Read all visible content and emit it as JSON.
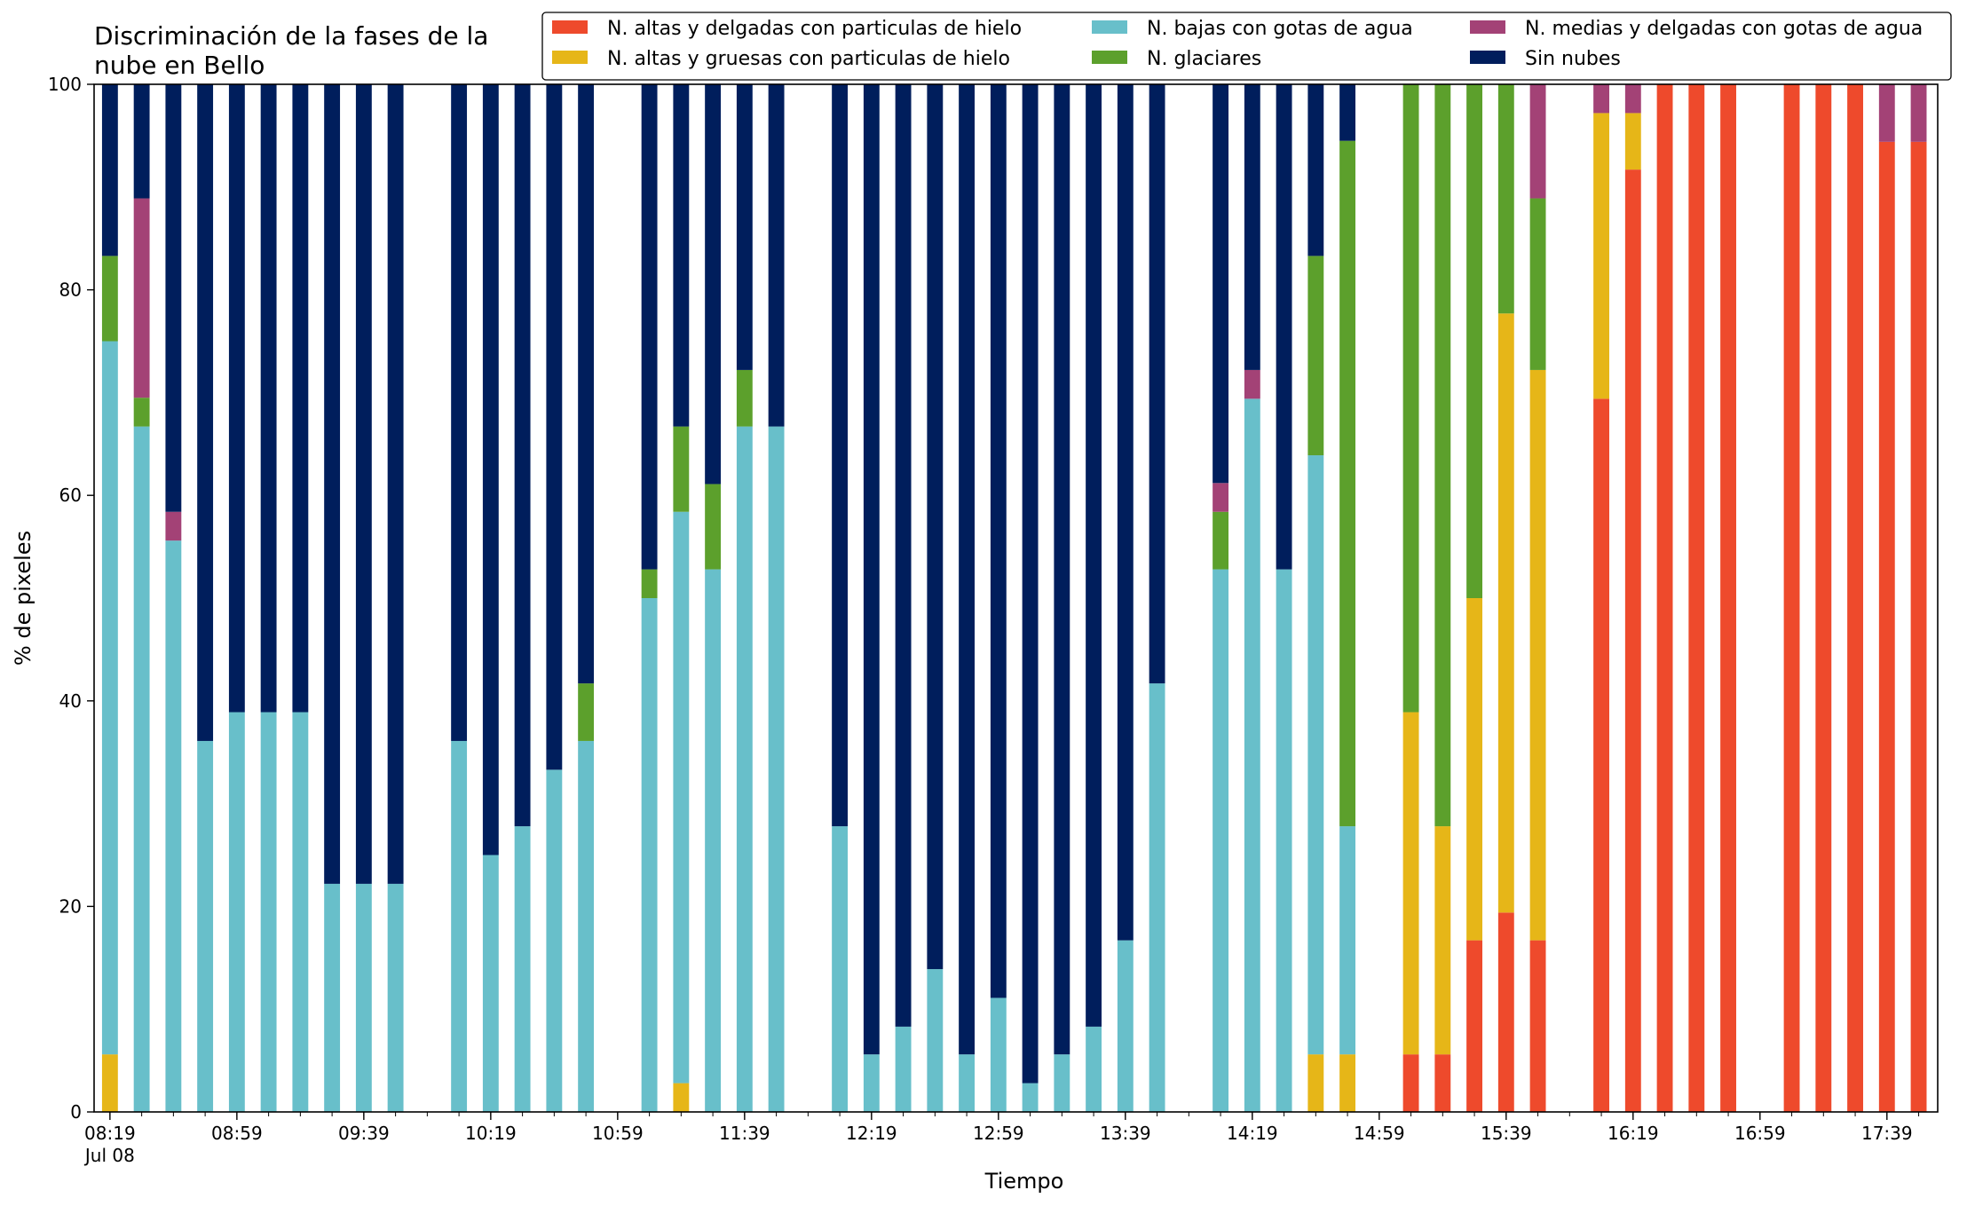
{
  "chart_data": {
    "type": "bar",
    "stacked": true,
    "title_lines": [
      "Discriminación de la fases de la",
      "nube en Bello"
    ],
    "xlabel": "Tiempo",
    "ylabel": "% de pixeles",
    "ylim": [
      0,
      100
    ],
    "yticks": [
      0,
      20,
      40,
      60,
      80,
      100
    ],
    "xlim_minutes": [
      494,
      1075
    ],
    "x_tick_labels": [
      {
        "t": 499,
        "label": "08:19",
        "sublabel": "Jul 08"
      },
      {
        "t": 539,
        "label": "08:59"
      },
      {
        "t": 579,
        "label": "09:39"
      },
      {
        "t": 619,
        "label": "10:19"
      },
      {
        "t": 659,
        "label": "10:59"
      },
      {
        "t": 699,
        "label": "11:39"
      },
      {
        "t": 739,
        "label": "12:19"
      },
      {
        "t": 779,
        "label": "12:59"
      },
      {
        "t": 819,
        "label": "13:39"
      },
      {
        "t": 859,
        "label": "14:19"
      },
      {
        "t": 899,
        "label": "14:59"
      },
      {
        "t": 939,
        "label": "15:39"
      },
      {
        "t": 979,
        "label": "16:19"
      },
      {
        "t": 1019,
        "label": "16:59"
      },
      {
        "t": 1059,
        "label": "17:39"
      }
    ],
    "x_minor_step_minutes": 10,
    "legend_position": "top-right",
    "series": [
      {
        "name": "N. altas y delgadas con particulas de hielo",
        "color": "#ee4a2c"
      },
      {
        "name": "N. altas y gruesas con particulas de hielo",
        "color": "#e6b618"
      },
      {
        "name": "N. bajas con gotas de agua",
        "color": "#68bfca"
      },
      {
        "name": "N. glaciares",
        "color": "#5ca02c"
      },
      {
        "name": "N. medias y delgadas con gotas de agua",
        "color": "#a34276"
      },
      {
        "name": "Sin nubes",
        "color": "#001e5c"
      }
    ],
    "bars": [
      {
        "t": 499,
        "values": [
          0,
          5.6,
          69.4,
          8.3,
          0,
          16.7
        ]
      },
      {
        "t": 509,
        "values": [
          0,
          0,
          66.7,
          2.8,
          19.4,
          11.1
        ]
      },
      {
        "t": 519,
        "values": [
          0,
          0,
          55.6,
          0,
          2.8,
          41.6
        ]
      },
      {
        "t": 529,
        "values": [
          0,
          0,
          36.1,
          0,
          0,
          63.9
        ]
      },
      {
        "t": 539,
        "values": [
          0,
          0,
          38.9,
          0,
          0,
          61.1
        ]
      },
      {
        "t": 549,
        "values": [
          0,
          0,
          38.9,
          0,
          0,
          61.1
        ]
      },
      {
        "t": 559,
        "values": [
          0,
          0,
          38.9,
          0,
          0,
          61.1
        ]
      },
      {
        "t": 569,
        "values": [
          0,
          0,
          22.2,
          0,
          0,
          77.8
        ]
      },
      {
        "t": 579,
        "values": [
          0,
          0,
          22.2,
          0,
          0,
          77.8
        ]
      },
      {
        "t": 589,
        "values": [
          0,
          0,
          22.2,
          0,
          0,
          77.8
        ]
      },
      {
        "t": 609,
        "values": [
          0,
          0,
          36.1,
          0,
          0,
          63.9
        ]
      },
      {
        "t": 619,
        "values": [
          0,
          0,
          25.0,
          0,
          0,
          75.0
        ]
      },
      {
        "t": 629,
        "values": [
          0,
          0,
          27.8,
          0,
          0,
          72.2
        ]
      },
      {
        "t": 639,
        "values": [
          0,
          0,
          33.3,
          0,
          0,
          66.7
        ]
      },
      {
        "t": 649,
        "values": [
          0,
          0,
          36.1,
          5.6,
          0,
          58.3
        ]
      },
      {
        "t": 669,
        "values": [
          0,
          0,
          50.0,
          2.8,
          0,
          47.2
        ]
      },
      {
        "t": 679,
        "values": [
          0,
          2.8,
          55.6,
          8.3,
          0,
          33.3
        ]
      },
      {
        "t": 689,
        "values": [
          0,
          0,
          52.8,
          8.3,
          0,
          38.9
        ]
      },
      {
        "t": 699,
        "values": [
          0,
          0,
          66.7,
          5.5,
          0,
          27.8
        ]
      },
      {
        "t": 709,
        "values": [
          0,
          0,
          66.7,
          0,
          0,
          33.3
        ]
      },
      {
        "t": 729,
        "values": [
          0,
          0,
          27.8,
          0,
          0,
          72.2
        ]
      },
      {
        "t": 739,
        "values": [
          0,
          0,
          5.6,
          0,
          0,
          94.4
        ]
      },
      {
        "t": 749,
        "values": [
          0,
          0,
          8.3,
          0,
          0,
          91.7
        ]
      },
      {
        "t": 759,
        "values": [
          0,
          0,
          13.9,
          0,
          0,
          86.1
        ]
      },
      {
        "t": 769,
        "values": [
          0,
          0,
          5.6,
          0,
          0,
          94.4
        ]
      },
      {
        "t": 779,
        "values": [
          0,
          0,
          11.1,
          0,
          0,
          88.9
        ]
      },
      {
        "t": 789,
        "values": [
          0,
          0,
          2.8,
          0,
          0,
          97.2
        ]
      },
      {
        "t": 799,
        "values": [
          0,
          0,
          5.6,
          0,
          0,
          94.4
        ]
      },
      {
        "t": 809,
        "values": [
          0,
          0,
          8.3,
          0,
          0,
          91.7
        ]
      },
      {
        "t": 819,
        "values": [
          0,
          0,
          16.7,
          0,
          0,
          83.3
        ]
      },
      {
        "t": 829,
        "values": [
          0,
          0,
          41.7,
          0,
          0,
          58.3
        ]
      },
      {
        "t": 849,
        "values": [
          0,
          0,
          52.8,
          5.6,
          2.8,
          38.8
        ]
      },
      {
        "t": 859,
        "values": [
          0,
          0,
          69.4,
          0,
          2.8,
          27.8
        ]
      },
      {
        "t": 869,
        "values": [
          0,
          0,
          52.8,
          0,
          0,
          47.2
        ]
      },
      {
        "t": 879,
        "values": [
          0,
          5.6,
          58.3,
          19.4,
          0,
          16.7
        ]
      },
      {
        "t": 889,
        "values": [
          0,
          5.6,
          22.2,
          66.7,
          0,
          5.5
        ]
      },
      {
        "t": 909,
        "values": [
          5.6,
          33.3,
          0,
          61.1,
          0,
          0
        ]
      },
      {
        "t": 919,
        "values": [
          5.6,
          22.2,
          0,
          72.2,
          0,
          0
        ]
      },
      {
        "t": 929,
        "values": [
          16.7,
          33.3,
          0,
          50.0,
          0,
          0
        ]
      },
      {
        "t": 939,
        "values": [
          19.4,
          58.3,
          0,
          22.3,
          0,
          0
        ]
      },
      {
        "t": 949,
        "values": [
          16.7,
          55.5,
          0,
          16.7,
          11.1,
          0
        ]
      },
      {
        "t": 969,
        "values": [
          69.4,
          27.8,
          0,
          0,
          2.8,
          0
        ]
      },
      {
        "t": 979,
        "values": [
          91.7,
          5.5,
          0,
          0,
          2.8,
          0
        ]
      },
      {
        "t": 989,
        "values": [
          100,
          0,
          0,
          0,
          0,
          0
        ]
      },
      {
        "t": 999,
        "values": [
          100,
          0,
          0,
          0,
          0,
          0
        ]
      },
      {
        "t": 1009,
        "values": [
          100,
          0,
          0,
          0,
          0,
          0
        ]
      },
      {
        "t": 1029,
        "values": [
          100,
          0,
          0,
          0,
          0,
          0
        ]
      },
      {
        "t": 1039,
        "values": [
          100,
          0,
          0,
          0,
          0,
          0
        ]
      },
      {
        "t": 1049,
        "values": [
          100,
          0,
          0,
          0,
          0,
          0
        ]
      },
      {
        "t": 1059,
        "values": [
          94.4,
          0,
          0,
          0,
          5.6,
          0
        ]
      },
      {
        "t": 1069,
        "values": [
          94.4,
          0,
          0,
          0,
          5.6,
          0
        ]
      }
    ]
  }
}
